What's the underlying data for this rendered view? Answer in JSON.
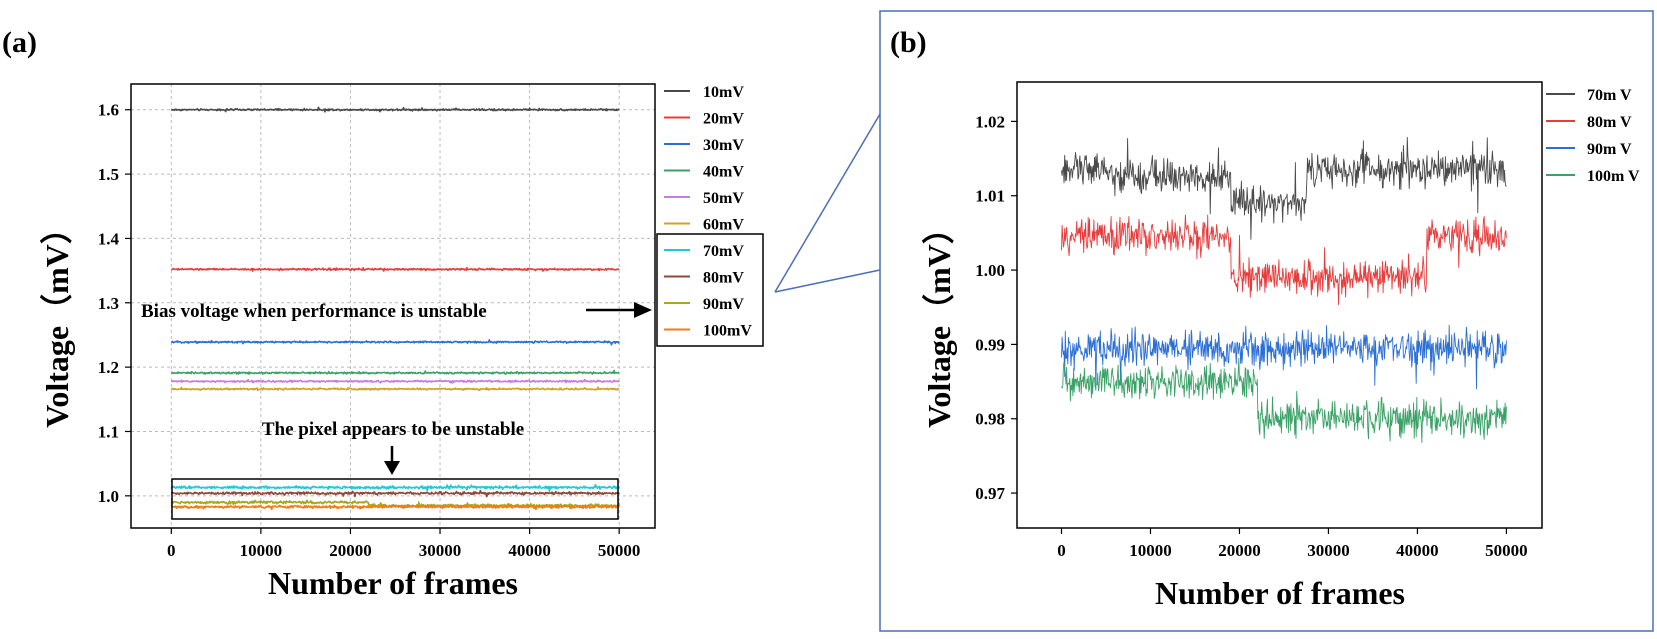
{
  "chart_data": [
    {
      "panel": "(a)",
      "type": "line",
      "xlabel": "Number of frames",
      "ylabel": "Voltage（mV）",
      "xlim": [
        -4500,
        54000
      ],
      "ylim": [
        0.95,
        1.64
      ],
      "xticks": [
        0,
        10000,
        20000,
        30000,
        40000,
        50000
      ],
      "yticks": [
        1.0,
        1.1,
        1.2,
        1.3,
        1.4,
        1.5,
        1.6
      ],
      "ytick_labels": [
        "1.0",
        "1.1",
        "1.2",
        "1.3",
        "1.4",
        "1.5",
        "1.6"
      ],
      "grid": true,
      "legend_position": "outside-right",
      "series": [
        {
          "name": "10mV",
          "color": "#4a4a4a",
          "segments": [
            [
              0,
              50000,
              1.6
            ]
          ],
          "noise": 0.002
        },
        {
          "name": "20mV",
          "color": "#e83c3c",
          "segments": [
            [
              0,
              50000,
              1.352
            ]
          ],
          "noise": 0.002
        },
        {
          "name": "30mV",
          "color": "#2b6fd6",
          "segments": [
            [
              0,
              50000,
              1.239
            ]
          ],
          "noise": 0.002
        },
        {
          "name": "40mV",
          "color": "#3aa267",
          "segments": [
            [
              0,
              50000,
              1.191
            ]
          ],
          "noise": 0.002
        },
        {
          "name": "50mV",
          "color": "#c57ddf",
          "segments": [
            [
              0,
              50000,
              1.178
            ]
          ],
          "noise": 0.002
        },
        {
          "name": "60mV",
          "color": "#d4a21f",
          "segments": [
            [
              0,
              50000,
              1.166
            ]
          ],
          "noise": 0.002
        },
        {
          "name": "70mV",
          "color": "#22c8d6",
          "segments": [
            [
              0,
              50000,
              1.013
            ]
          ],
          "noise": 0.003
        },
        {
          "name": "80mV",
          "color": "#8b4a3c",
          "segments": [
            [
              0,
              50000,
              1.004
            ]
          ],
          "noise": 0.003
        },
        {
          "name": "90mV",
          "color": "#a5a71c",
          "segments": [
            [
              0,
              22000,
              0.99
            ],
            [
              22000,
              50000,
              0.985
            ]
          ],
          "noise": 0.003
        },
        {
          "name": "100mV",
          "color": "#f47a16",
          "segments": [
            [
              0,
              50000,
              0.983
            ]
          ],
          "noise": 0.003
        }
      ],
      "annotations": [
        "Bias voltage when performance is unstable",
        "The pixel appears to be unstable"
      ]
    },
    {
      "panel": "(b)",
      "type": "line",
      "xlabel": "Number of frames",
      "ylabel": "Voltage（mV）",
      "xlim": [
        -5000,
        54000
      ],
      "ylim": [
        0.9653,
        1.0253
      ],
      "xticks": [
        0,
        10000,
        20000,
        30000,
        40000,
        50000
      ],
      "yticks": [
        0.97,
        0.98,
        0.99,
        1.0,
        1.01,
        1.02
      ],
      "ytick_labels": [
        "0.97",
        "0.98",
        "0.99",
        "1.00",
        "1.01",
        "1.02"
      ],
      "grid": false,
      "legend_position": "outside-right",
      "series": [
        {
          "name": "70m V",
          "color": "#4a4a4a",
          "segments": [
            [
              0,
              5000,
              1.0135
            ],
            [
              5000,
              19000,
              1.0125
            ],
            [
              19000,
              27500,
              1.009
            ],
            [
              27500,
              50000,
              1.0135
            ]
          ],
          "noise": 0.0035
        },
        {
          "name": "80m V",
          "color": "#e83c3c",
          "segments": [
            [
              0,
              19000,
              1.0045
            ],
            [
              19000,
              41000,
              0.999
            ],
            [
              41000,
              50000,
              1.0045
            ]
          ],
          "noise": 0.0035
        },
        {
          "name": "90m V",
          "color": "#2b6fd6",
          "segments": [
            [
              0,
              50000,
              0.9895
            ]
          ],
          "noise": 0.0035
        },
        {
          "name": "100m V",
          "color": "#3aa267",
          "segments": [
            [
              0,
              22000,
              0.985
            ],
            [
              22000,
              50000,
              0.98
            ]
          ],
          "noise": 0.0035
        }
      ]
    }
  ]
}
